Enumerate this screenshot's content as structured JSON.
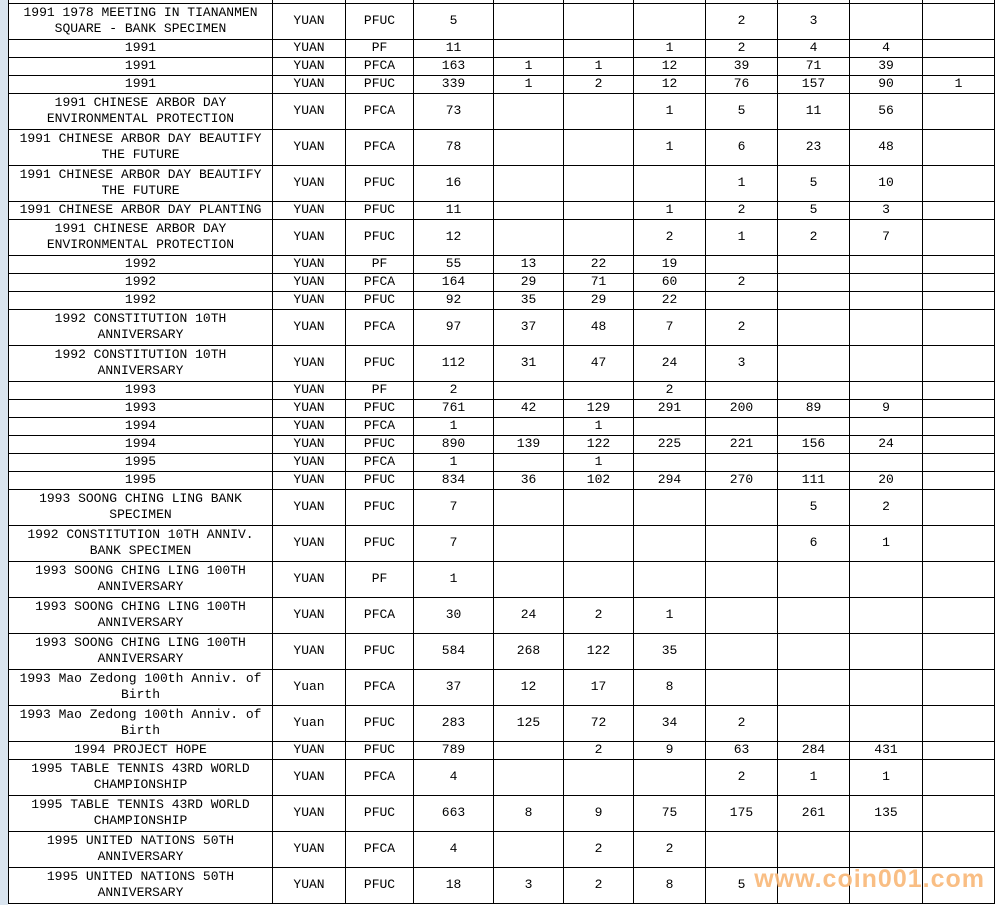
{
  "watermark": {
    "text": "www.coin001.com",
    "color": "#F8B87A"
  },
  "table": {
    "rows": [
      {
        "desc": "1991 1978 MEETING IN TIANANMEN SQUARE - BANK SPECIMEN",
        "currency": "YUAN",
        "grade": "PFUC",
        "tall": true,
        "cells": [
          "5",
          "",
          "",
          "",
          "2",
          "3",
          "",
          ""
        ]
      },
      {
        "desc": "1991",
        "currency": "YUAN",
        "grade": "PF",
        "tall": false,
        "cells": [
          "11",
          "",
          "",
          "1",
          "2",
          "4",
          "4",
          ""
        ]
      },
      {
        "desc": "1991",
        "currency": "YUAN",
        "grade": "PFCA",
        "tall": false,
        "cells": [
          "163",
          "1",
          "1",
          "12",
          "39",
          "71",
          "39",
          ""
        ]
      },
      {
        "desc": "1991",
        "currency": "YUAN",
        "grade": "PFUC",
        "tall": false,
        "cells": [
          "339",
          "1",
          "2",
          "12",
          "76",
          "157",
          "90",
          "1"
        ]
      },
      {
        "desc": "1991 CHINESE ARBOR DAY ENVIRONMENTAL PROTECTION",
        "currency": "YUAN",
        "grade": "PFCA",
        "tall": true,
        "cells": [
          "73",
          "",
          "",
          "1",
          "5",
          "11",
          "56",
          ""
        ]
      },
      {
        "desc": "1991 CHINESE ARBOR DAY BEAUTIFY THE FUTURE",
        "currency": "YUAN",
        "grade": "PFCA",
        "tall": true,
        "cells": [
          "78",
          "",
          "",
          "1",
          "6",
          "23",
          "48",
          ""
        ]
      },
      {
        "desc": "1991 CHINESE ARBOR DAY BEAUTIFY THE FUTURE",
        "currency": "YUAN",
        "grade": "PFUC",
        "tall": true,
        "cells": [
          "16",
          "",
          "",
          "",
          "1",
          "5",
          "10",
          ""
        ]
      },
      {
        "desc": "1991 CHINESE ARBOR DAY PLANTING",
        "currency": "YUAN",
        "grade": "PFUC",
        "tall": false,
        "cells": [
          "11",
          "",
          "",
          "1",
          "2",
          "5",
          "3",
          ""
        ]
      },
      {
        "desc": "1991 CHINESE ARBOR DAY ENVIRONMENTAL PROTECTION",
        "currency": "YUAN",
        "grade": "PFUC",
        "tall": true,
        "cells": [
          "12",
          "",
          "",
          "2",
          "1",
          "2",
          "7",
          ""
        ]
      },
      {
        "desc": "1992",
        "currency": "YUAN",
        "grade": "PF",
        "tall": false,
        "cells": [
          "55",
          "13",
          "22",
          "19",
          "",
          "",
          "",
          ""
        ]
      },
      {
        "desc": "1992",
        "currency": "YUAN",
        "grade": "PFCA",
        "tall": false,
        "cells": [
          "164",
          "29",
          "71",
          "60",
          "2",
          "",
          "",
          ""
        ]
      },
      {
        "desc": "1992",
        "currency": "YUAN",
        "grade": "PFUC",
        "tall": false,
        "cells": [
          "92",
          "35",
          "29",
          "22",
          "",
          "",
          "",
          ""
        ]
      },
      {
        "desc": "1992 CONSTITUTION 10TH ANNIVERSARY",
        "currency": "YUAN",
        "grade": "PFCA",
        "tall": true,
        "cells": [
          "97",
          "37",
          "48",
          "7",
          "2",
          "",
          "",
          ""
        ]
      },
      {
        "desc": "1992 CONSTITUTION 10TH ANNIVERSARY",
        "currency": "YUAN",
        "grade": "PFUC",
        "tall": true,
        "cells": [
          "112",
          "31",
          "47",
          "24",
          "3",
          "",
          "",
          ""
        ]
      },
      {
        "desc": "1993",
        "currency": "YUAN",
        "grade": "PF",
        "tall": false,
        "cells": [
          "2",
          "",
          "",
          "2",
          "",
          "",
          "",
          ""
        ]
      },
      {
        "desc": "1993",
        "currency": "YUAN",
        "grade": "PFUC",
        "tall": false,
        "cells": [
          "761",
          "42",
          "129",
          "291",
          "200",
          "89",
          "9",
          ""
        ]
      },
      {
        "desc": "1994",
        "currency": "YUAN",
        "grade": "PFCA",
        "tall": false,
        "cells": [
          "1",
          "",
          "1",
          "",
          "",
          "",
          "",
          ""
        ]
      },
      {
        "desc": "1994",
        "currency": "YUAN",
        "grade": "PFUC",
        "tall": false,
        "cells": [
          "890",
          "139",
          "122",
          "225",
          "221",
          "156",
          "24",
          ""
        ]
      },
      {
        "desc": "1995",
        "currency": "YUAN",
        "grade": "PFCA",
        "tall": false,
        "cells": [
          "1",
          "",
          "1",
          "",
          "",
          "",
          "",
          ""
        ]
      },
      {
        "desc": "1995",
        "currency": "YUAN",
        "grade": "PFUC",
        "tall": false,
        "cells": [
          "834",
          "36",
          "102",
          "294",
          "270",
          "111",
          "20",
          ""
        ]
      },
      {
        "desc": "1993 SOONG CHING LING BANK SPECIMEN",
        "currency": "YUAN",
        "grade": "PFUC",
        "tall": true,
        "cells": [
          "7",
          "",
          "",
          "",
          "",
          "5",
          "2",
          ""
        ]
      },
      {
        "desc": "1992 CONSTITUTION 10TH ANNIV. BANK SPECIMEN",
        "currency": "YUAN",
        "grade": "PFUC",
        "tall": true,
        "cells": [
          "7",
          "",
          "",
          "",
          "",
          "6",
          "1",
          ""
        ]
      },
      {
        "desc": "1993 SOONG CHING LING 100TH ANNIVERSARY",
        "currency": "YUAN",
        "grade": "PF",
        "tall": true,
        "cells": [
          "1",
          "",
          "",
          "",
          "",
          "",
          "",
          ""
        ]
      },
      {
        "desc": "1993 SOONG CHING LING 100TH ANNIVERSARY",
        "currency": "YUAN",
        "grade": "PFCA",
        "tall": true,
        "cells": [
          "30",
          "24",
          "2",
          "1",
          "",
          "",
          "",
          ""
        ]
      },
      {
        "desc": "1993 SOONG CHING LING 100TH ANNIVERSARY",
        "currency": "YUAN",
        "grade": "PFUC",
        "tall": true,
        "cells": [
          "584",
          "268",
          "122",
          "35",
          "",
          "",
          "",
          ""
        ]
      },
      {
        "desc": "1993 Mao Zedong 100th Anniv. of Birth",
        "currency": "Yuan",
        "grade": "PFCA",
        "tall": true,
        "cells": [
          "37",
          "12",
          "17",
          "8",
          "",
          "",
          "",
          ""
        ]
      },
      {
        "desc": "1993 Mao Zedong 100th Anniv. of Birth",
        "currency": "Yuan",
        "grade": "PFUC",
        "tall": true,
        "cells": [
          "283",
          "125",
          "72",
          "34",
          "2",
          "",
          "",
          ""
        ]
      },
      {
        "desc": "1994 PROJECT HOPE",
        "currency": "YUAN",
        "grade": "PFUC",
        "tall": false,
        "cells": [
          "789",
          "",
          "2",
          "9",
          "63",
          "284",
          "431",
          ""
        ]
      },
      {
        "desc": "1995 TABLE TENNIS 43RD WORLD CHAMPIONSHIP",
        "currency": "YUAN",
        "grade": "PFCA",
        "tall": true,
        "cells": [
          "4",
          "",
          "",
          "",
          "2",
          "1",
          "1",
          ""
        ]
      },
      {
        "desc": "1995 TABLE TENNIS 43RD WORLD CHAMPIONSHIP",
        "currency": "YUAN",
        "grade": "PFUC",
        "tall": true,
        "cells": [
          "663",
          "8",
          "9",
          "75",
          "175",
          "261",
          "135",
          ""
        ]
      },
      {
        "desc": "1995 UNITED NATIONS 50TH ANNIVERSARY",
        "currency": "YUAN",
        "grade": "PFCA",
        "tall": true,
        "cells": [
          "4",
          "",
          "2",
          "2",
          "",
          "",
          "",
          ""
        ]
      },
      {
        "desc": "1995 UNITED NATIONS 50TH ANNIVERSARY",
        "currency": "YUAN",
        "grade": "PFUC",
        "tall": true,
        "cells": [
          "18",
          "3",
          "2",
          "8",
          "5",
          "",
          "",
          ""
        ]
      }
    ]
  }
}
